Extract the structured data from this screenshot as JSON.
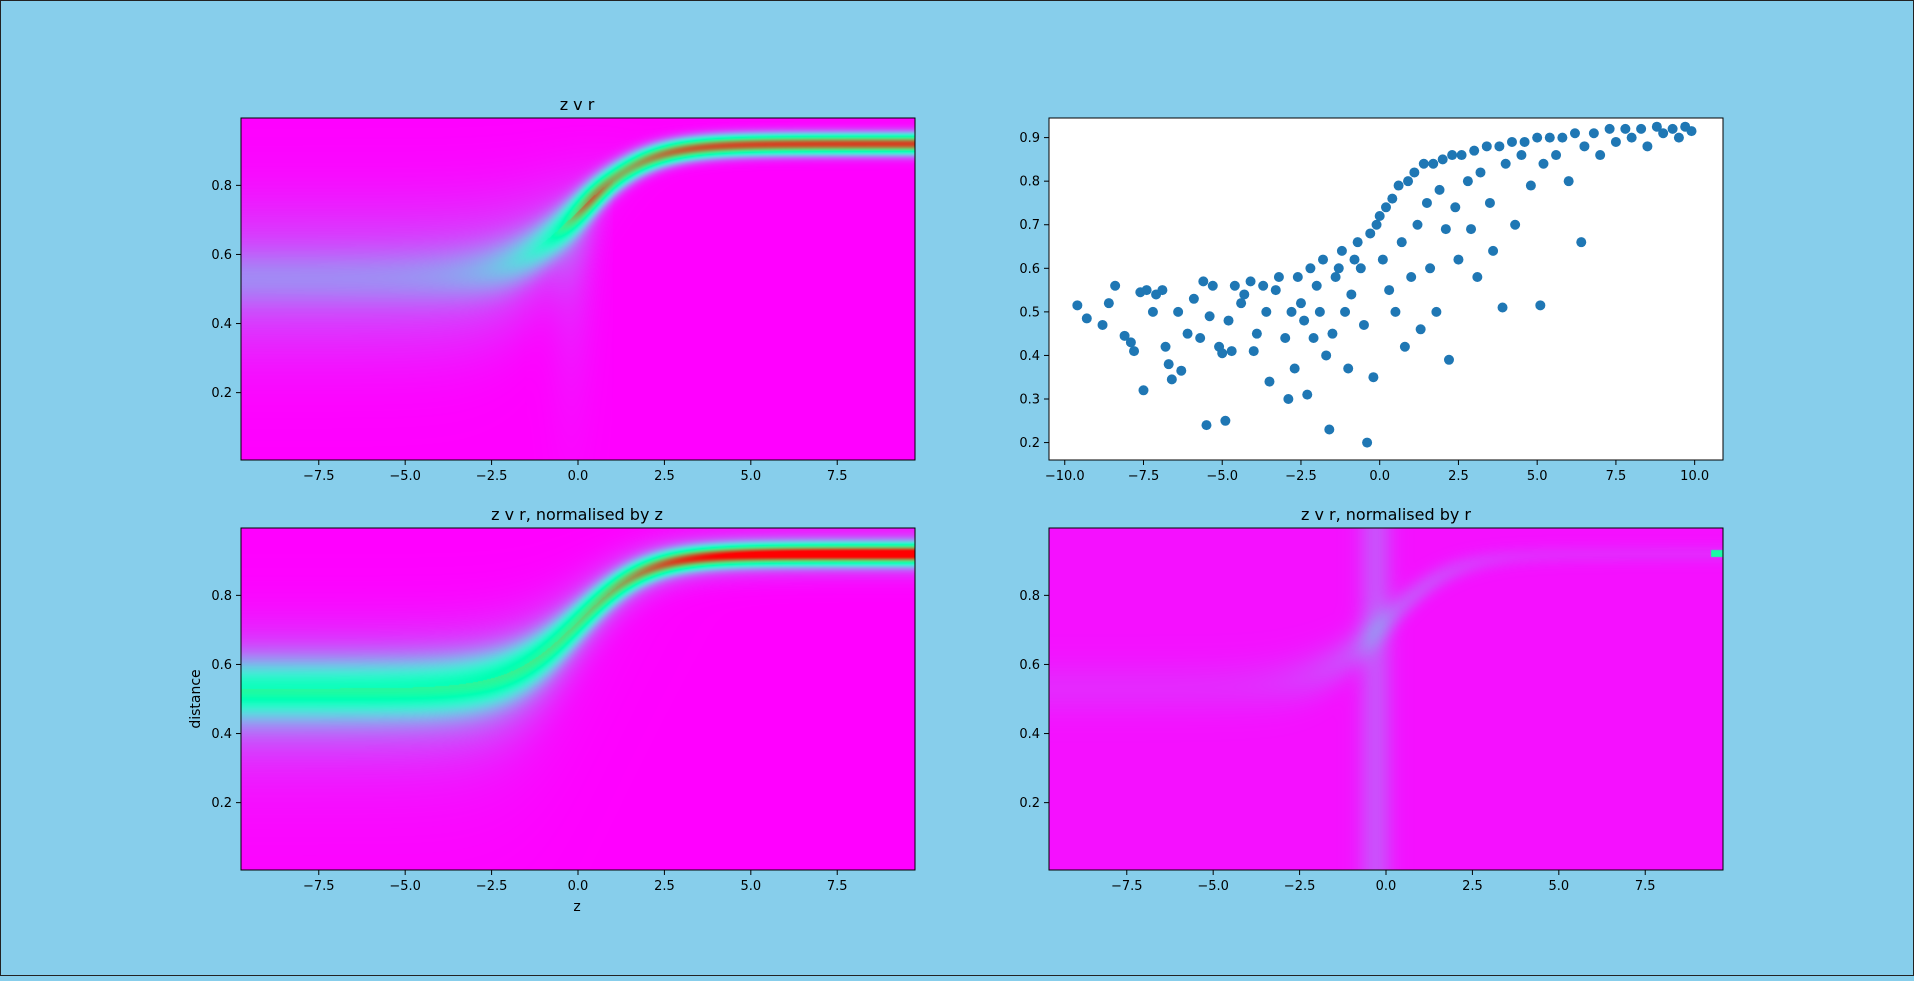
{
  "figure": {
    "background": "#87ceeb"
  },
  "chart_data": [
    {
      "id": "heat1",
      "type": "heatmap",
      "title": "z v r",
      "xlabel": "",
      "ylabel": "",
      "xlim": [
        -9.75,
        9.75
      ],
      "ylim": [
        0.005,
        0.995
      ],
      "xticks": [
        -7.5,
        -5.0,
        -2.5,
        0.0,
        2.5,
        5.0,
        7.5
      ],
      "xticklabels": [
        "−7.5",
        "−5.0",
        "−2.5",
        "0.0",
        "2.5",
        "5.0",
        "7.5"
      ],
      "yticks": [
        0.2,
        0.4,
        0.6,
        0.8
      ],
      "yticklabels": [
        "0.2",
        "0.4",
        "0.6",
        "0.8"
      ],
      "colormap": "rainbow",
      "ridge_curve": {
        "description_points": [
          [
            -9.75,
            0.53
          ],
          [
            -2.5,
            0.57
          ],
          [
            0.0,
            0.65
          ],
          [
            2.5,
            0.84
          ],
          [
            7.5,
            0.905
          ],
          [
            9.75,
            0.92
          ]
        ]
      },
      "normalisation": "none"
    },
    {
      "id": "scatter1",
      "type": "scatter",
      "title": "",
      "xlabel": "",
      "ylabel": "",
      "xlim": [
        -10.5,
        10.9
      ],
      "ylim": [
        0.16,
        0.945
      ],
      "xticks": [
        -10.0,
        -7.5,
        -5.0,
        -2.5,
        0.0,
        2.5,
        5.0,
        7.5,
        10.0
      ],
      "xticklabels": [
        "−10.0",
        "−7.5",
        "−5.0",
        "−2.5",
        "0.0",
        "2.5",
        "5.0",
        "7.5",
        "10.0"
      ],
      "yticks": [
        0.2,
        0.3,
        0.4,
        0.5,
        0.6,
        0.7,
        0.8,
        0.9
      ],
      "yticklabels": [
        "0.2",
        "0.3",
        "0.4",
        "0.5",
        "0.6",
        "0.7",
        "0.8",
        "0.9"
      ],
      "marker_color": "#1f77b4",
      "points": [
        [
          -9.6,
          0.515
        ],
        [
          -9.3,
          0.485
        ],
        [
          -8.8,
          0.47
        ],
        [
          -8.6,
          0.52
        ],
        [
          -8.4,
          0.56
        ],
        [
          -8.1,
          0.445
        ],
        [
          -7.9,
          0.43
        ],
        [
          -7.8,
          0.41
        ],
        [
          -7.6,
          0.545
        ],
        [
          -7.5,
          0.32
        ],
        [
          -7.4,
          0.55
        ],
        [
          -7.2,
          0.5
        ],
        [
          -7.1,
          0.54
        ],
        [
          -6.9,
          0.55
        ],
        [
          -6.8,
          0.42
        ],
        [
          -6.7,
          0.38
        ],
        [
          -6.6,
          0.345
        ],
        [
          -6.4,
          0.5
        ],
        [
          -6.3,
          0.365
        ],
        [
          -6.1,
          0.45
        ],
        [
          -5.9,
          0.53
        ],
        [
          -5.7,
          0.44
        ],
        [
          -5.6,
          0.57
        ],
        [
          -5.5,
          0.24
        ],
        [
          -5.4,
          0.49
        ],
        [
          -5.3,
          0.56
        ],
        [
          -5.1,
          0.42
        ],
        [
          -5.0,
          0.405
        ],
        [
          -4.9,
          0.25
        ],
        [
          -4.8,
          0.48
        ],
        [
          -4.7,
          0.41
        ],
        [
          -4.6,
          0.56
        ],
        [
          -4.4,
          0.52
        ],
        [
          -4.3,
          0.54
        ],
        [
          -4.1,
          0.57
        ],
        [
          -4.0,
          0.41
        ],
        [
          -3.9,
          0.45
        ],
        [
          -3.7,
          0.56
        ],
        [
          -3.6,
          0.5
        ],
        [
          -3.5,
          0.34
        ],
        [
          -3.3,
          0.55
        ],
        [
          -3.2,
          0.58
        ],
        [
          -3.0,
          0.44
        ],
        [
          -2.9,
          0.3
        ],
        [
          -2.8,
          0.5
        ],
        [
          -2.7,
          0.37
        ],
        [
          -2.6,
          0.58
        ],
        [
          -2.5,
          0.52
        ],
        [
          -2.4,
          0.48
        ],
        [
          -2.3,
          0.31
        ],
        [
          -2.2,
          0.6
        ],
        [
          -2.1,
          0.44
        ],
        [
          -2.0,
          0.56
        ],
        [
          -1.9,
          0.5
        ],
        [
          -1.8,
          0.62
        ],
        [
          -1.7,
          0.4
        ],
        [
          -1.6,
          0.23
        ],
        [
          -1.5,
          0.45
        ],
        [
          -1.4,
          0.58
        ],
        [
          -1.3,
          0.6
        ],
        [
          -1.2,
          0.64
        ],
        [
          -1.1,
          0.5
        ],
        [
          -1.0,
          0.37
        ],
        [
          -0.9,
          0.54
        ],
        [
          -0.8,
          0.62
        ],
        [
          -0.7,
          0.66
        ],
        [
          -0.6,
          0.6
        ],
        [
          -0.5,
          0.47
        ],
        [
          -0.4,
          0.2
        ],
        [
          -0.3,
          0.68
        ],
        [
          -0.2,
          0.35
        ],
        [
          -0.1,
          0.7
        ],
        [
          0.0,
          0.72
        ],
        [
          0.1,
          0.62
        ],
        [
          0.2,
          0.74
        ],
        [
          0.3,
          0.55
        ],
        [
          0.4,
          0.76
        ],
        [
          0.5,
          0.5
        ],
        [
          0.6,
          0.79
        ],
        [
          0.7,
          0.66
        ],
        [
          0.8,
          0.42
        ],
        [
          0.9,
          0.8
        ],
        [
          1.0,
          0.58
        ],
        [
          1.1,
          0.82
        ],
        [
          1.2,
          0.7
        ],
        [
          1.3,
          0.46
        ],
        [
          1.4,
          0.84
        ],
        [
          1.5,
          0.75
        ],
        [
          1.6,
          0.6
        ],
        [
          1.7,
          0.84
        ],
        [
          1.8,
          0.5
        ],
        [
          1.9,
          0.78
        ],
        [
          2.0,
          0.85
        ],
        [
          2.1,
          0.69
        ],
        [
          2.2,
          0.39
        ],
        [
          2.3,
          0.86
        ],
        [
          2.4,
          0.74
        ],
        [
          2.5,
          0.62
        ],
        [
          2.6,
          0.86
        ],
        [
          2.8,
          0.8
        ],
        [
          2.9,
          0.69
        ],
        [
          3.0,
          0.87
        ],
        [
          3.1,
          0.58
        ],
        [
          3.2,
          0.82
        ],
        [
          3.4,
          0.88
        ],
        [
          3.5,
          0.75
        ],
        [
          3.6,
          0.64
        ],
        [
          3.8,
          0.88
        ],
        [
          3.9,
          0.51
        ],
        [
          4.0,
          0.84
        ],
        [
          4.2,
          0.89
        ],
        [
          4.3,
          0.7
        ],
        [
          4.5,
          0.86
        ],
        [
          4.6,
          0.89
        ],
        [
          4.8,
          0.79
        ],
        [
          5.0,
          0.9
        ],
        [
          5.1,
          0.515
        ],
        [
          5.2,
          0.84
        ],
        [
          5.4,
          0.9
        ],
        [
          5.6,
          0.86
        ],
        [
          5.8,
          0.9
        ],
        [
          6.0,
          0.8
        ],
        [
          6.2,
          0.91
        ],
        [
          6.4,
          0.66
        ],
        [
          6.5,
          0.88
        ],
        [
          6.8,
          0.91
        ],
        [
          7.0,
          0.86
        ],
        [
          7.3,
          0.92
        ],
        [
          7.5,
          0.89
        ],
        [
          7.8,
          0.92
        ],
        [
          8.0,
          0.9
        ],
        [
          8.3,
          0.92
        ],
        [
          8.5,
          0.88
        ],
        [
          8.8,
          0.925
        ],
        [
          9.0,
          0.91
        ],
        [
          9.3,
          0.92
        ],
        [
          9.5,
          0.9
        ],
        [
          9.7,
          0.925
        ],
        [
          9.9,
          0.915
        ]
      ]
    },
    {
      "id": "heat2",
      "type": "heatmap",
      "title": "z v r, normalised by z",
      "xlabel": "z",
      "ylabel": "distance",
      "xlim": [
        -9.75,
        9.75
      ],
      "ylim": [
        0.005,
        0.995
      ],
      "xticks": [
        -7.5,
        -5.0,
        -2.5,
        0.0,
        2.5,
        5.0,
        7.5
      ],
      "xticklabels": [
        "−7.5",
        "−5.0",
        "−2.5",
        "0.0",
        "2.5",
        "5.0",
        "7.5"
      ],
      "yticks": [
        0.2,
        0.4,
        0.6,
        0.8
      ],
      "yticklabels": [
        "0.2",
        "0.4",
        "0.6",
        "0.8"
      ],
      "colormap": "rainbow",
      "normalisation": "by z"
    },
    {
      "id": "heat3",
      "type": "heatmap",
      "title": "z v r, normalised by r",
      "xlabel": "",
      "ylabel": "",
      "xlim": [
        -9.75,
        9.75
      ],
      "ylim": [
        0.005,
        0.995
      ],
      "xticks": [
        -7.5,
        -5.0,
        -2.5,
        0.0,
        2.5,
        5.0,
        7.5
      ],
      "xticklabels": [
        "−7.5",
        "−5.0",
        "−2.5",
        "0.0",
        "2.5",
        "5.0",
        "7.5"
      ],
      "yticks": [
        0.2,
        0.4,
        0.6,
        0.8
      ],
      "yticklabels": [
        "0.2",
        "0.4",
        "0.6",
        "0.8"
      ],
      "colormap": "rainbow",
      "normalisation": "by r"
    }
  ]
}
